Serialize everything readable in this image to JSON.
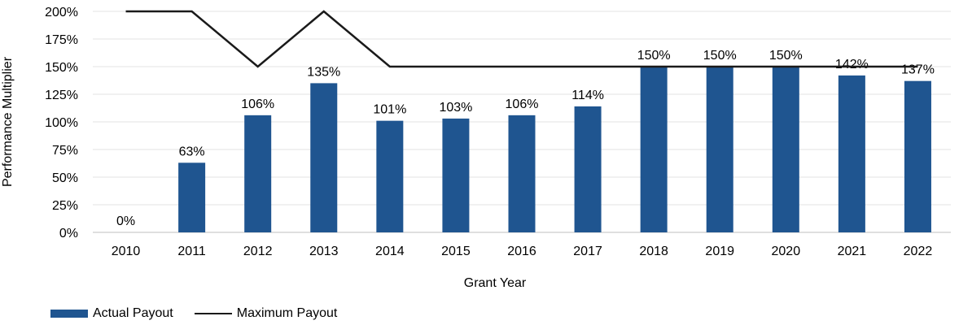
{
  "chart_data": {
    "type": "bar",
    "categories": [
      "2010",
      "2011",
      "2012",
      "2013",
      "2014",
      "2015",
      "2016",
      "2017",
      "2018",
      "2019",
      "2020",
      "2021",
      "2022"
    ],
    "series": [
      {
        "name": "Actual Payout",
        "type": "bar",
        "values": [
          0,
          63,
          106,
          135,
          101,
          103,
          106,
          114,
          150,
          150,
          150,
          142,
          137
        ],
        "labels": [
          "0%",
          "63%",
          "106%",
          "135%",
          "101%",
          "103%",
          "106%",
          "114%",
          "150%",
          "150%",
          "150%",
          "142%",
          "137%"
        ],
        "color": "#1f5590"
      },
      {
        "name": "Maximum Payout",
        "type": "line",
        "values": [
          200,
          200,
          150,
          200,
          150,
          150,
          150,
          150,
          150,
          150,
          150,
          150,
          150
        ],
        "color": "#1a1a1a"
      }
    ],
    "xlabel": "Grant Year",
    "ylabel": "Performance Multiplier",
    "ylim": [
      0,
      200
    ],
    "yticks": [
      "0%",
      "25%",
      "50%",
      "75%",
      "100%",
      "125%",
      "150%",
      "175%",
      "200%"
    ],
    "grid": true,
    "legend": "bottom-left"
  }
}
